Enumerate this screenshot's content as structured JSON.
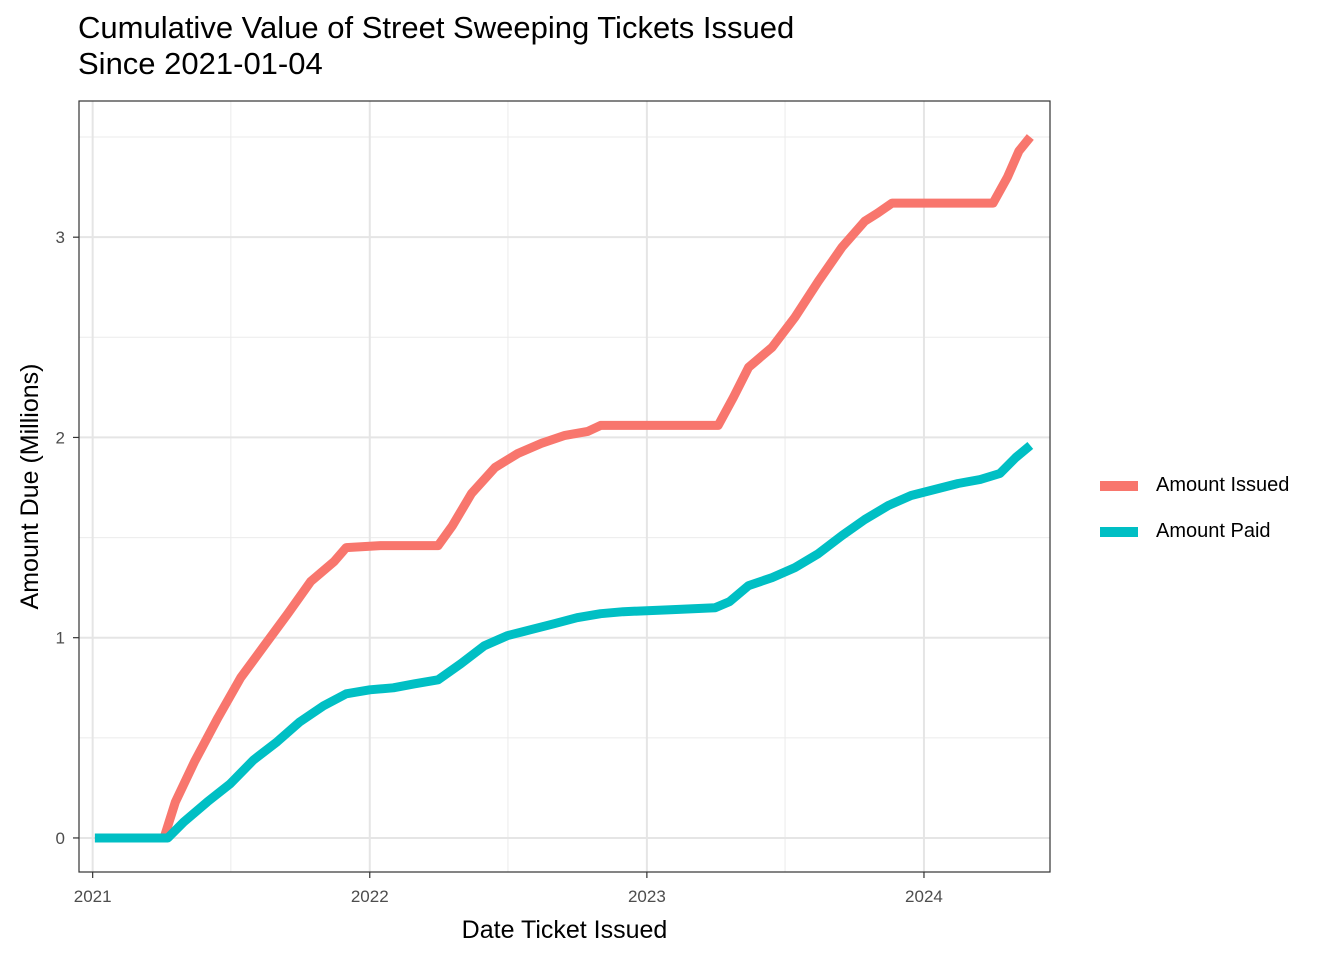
{
  "chart_data": {
    "type": "line",
    "title": "Cumulative Value of Street Sweeping Tickets Issued",
    "subtitle": "Since 2021-01-04",
    "xlabel": "Date Ticket Issued",
    "ylabel": "Amount Due (Millions)",
    "x_tick_labels": [
      "2021",
      "2022",
      "2023",
      "2024"
    ],
    "y_tick_labels": [
      "0",
      "1",
      "2",
      "3"
    ],
    "xlim": [
      "2020-12-14",
      "2024-06-15"
    ],
    "ylim": [
      -0.17,
      3.68
    ],
    "grid": true,
    "legend_position": "right",
    "series": [
      {
        "name": "Amount Issued",
        "color": "#F8766D",
        "points": [
          [
            "2021-01-04",
            0.0
          ],
          [
            "2021-04-05",
            0.0
          ],
          [
            "2021-04-20",
            0.18
          ],
          [
            "2021-05-15",
            0.38
          ],
          [
            "2021-06-15",
            0.6
          ],
          [
            "2021-07-15",
            0.8
          ],
          [
            "2021-08-15",
            0.96
          ],
          [
            "2021-09-15",
            1.12
          ],
          [
            "2021-10-15",
            1.28
          ],
          [
            "2021-11-15",
            1.38
          ],
          [
            "2021-12-01",
            1.45
          ],
          [
            "2022-01-15",
            1.46
          ],
          [
            "2022-04-01",
            1.46
          ],
          [
            "2022-04-20",
            1.56
          ],
          [
            "2022-05-15",
            1.72
          ],
          [
            "2022-06-15",
            1.85
          ],
          [
            "2022-07-15",
            1.92
          ],
          [
            "2022-08-15",
            1.97
          ],
          [
            "2022-09-15",
            2.01
          ],
          [
            "2022-10-15",
            2.03
          ],
          [
            "2022-11-01",
            2.06
          ],
          [
            "2023-01-15",
            2.06
          ],
          [
            "2023-04-05",
            2.06
          ],
          [
            "2023-04-25",
            2.2
          ],
          [
            "2023-05-15",
            2.35
          ],
          [
            "2023-06-15",
            2.45
          ],
          [
            "2023-07-15",
            2.6
          ],
          [
            "2023-08-15",
            2.78
          ],
          [
            "2023-09-15",
            2.95
          ],
          [
            "2023-10-15",
            3.08
          ],
          [
            "2023-11-01",
            3.12
          ],
          [
            "2023-11-20",
            3.17
          ],
          [
            "2024-01-15",
            3.17
          ],
          [
            "2024-04-01",
            3.17
          ],
          [
            "2024-04-20",
            3.3
          ],
          [
            "2024-05-05",
            3.43
          ],
          [
            "2024-05-20",
            3.5
          ]
        ]
      },
      {
        "name": "Amount Paid",
        "color": "#00BFC4",
        "points": [
          [
            "2021-01-04",
            0.0
          ],
          [
            "2021-04-10",
            0.0
          ],
          [
            "2021-05-01",
            0.08
          ],
          [
            "2021-06-01",
            0.18
          ],
          [
            "2021-07-01",
            0.27
          ],
          [
            "2021-08-01",
            0.39
          ],
          [
            "2021-09-01",
            0.48
          ],
          [
            "2021-10-01",
            0.58
          ],
          [
            "2021-11-01",
            0.66
          ],
          [
            "2021-12-01",
            0.72
          ],
          [
            "2022-01-01",
            0.74
          ],
          [
            "2022-02-01",
            0.75
          ],
          [
            "2022-03-01",
            0.77
          ],
          [
            "2022-04-01",
            0.79
          ],
          [
            "2022-05-01",
            0.87
          ],
          [
            "2022-06-01",
            0.96
          ],
          [
            "2022-07-01",
            1.01
          ],
          [
            "2022-08-01",
            1.04
          ],
          [
            "2022-09-01",
            1.07
          ],
          [
            "2022-10-01",
            1.1
          ],
          [
            "2022-11-01",
            1.12
          ],
          [
            "2022-12-01",
            1.13
          ],
          [
            "2023-02-01",
            1.14
          ],
          [
            "2023-04-01",
            1.15
          ],
          [
            "2023-04-20",
            1.18
          ],
          [
            "2023-05-15",
            1.26
          ],
          [
            "2023-06-15",
            1.3
          ],
          [
            "2023-07-15",
            1.35
          ],
          [
            "2023-08-15",
            1.42
          ],
          [
            "2023-09-15",
            1.51
          ],
          [
            "2023-10-15",
            1.59
          ],
          [
            "2023-11-15",
            1.66
          ],
          [
            "2023-12-15",
            1.71
          ],
          [
            "2024-01-15",
            1.74
          ],
          [
            "2024-02-15",
            1.77
          ],
          [
            "2024-03-15",
            1.79
          ],
          [
            "2024-04-10",
            1.82
          ],
          [
            "2024-05-01",
            1.9
          ],
          [
            "2024-05-20",
            1.96
          ]
        ]
      }
    ]
  }
}
